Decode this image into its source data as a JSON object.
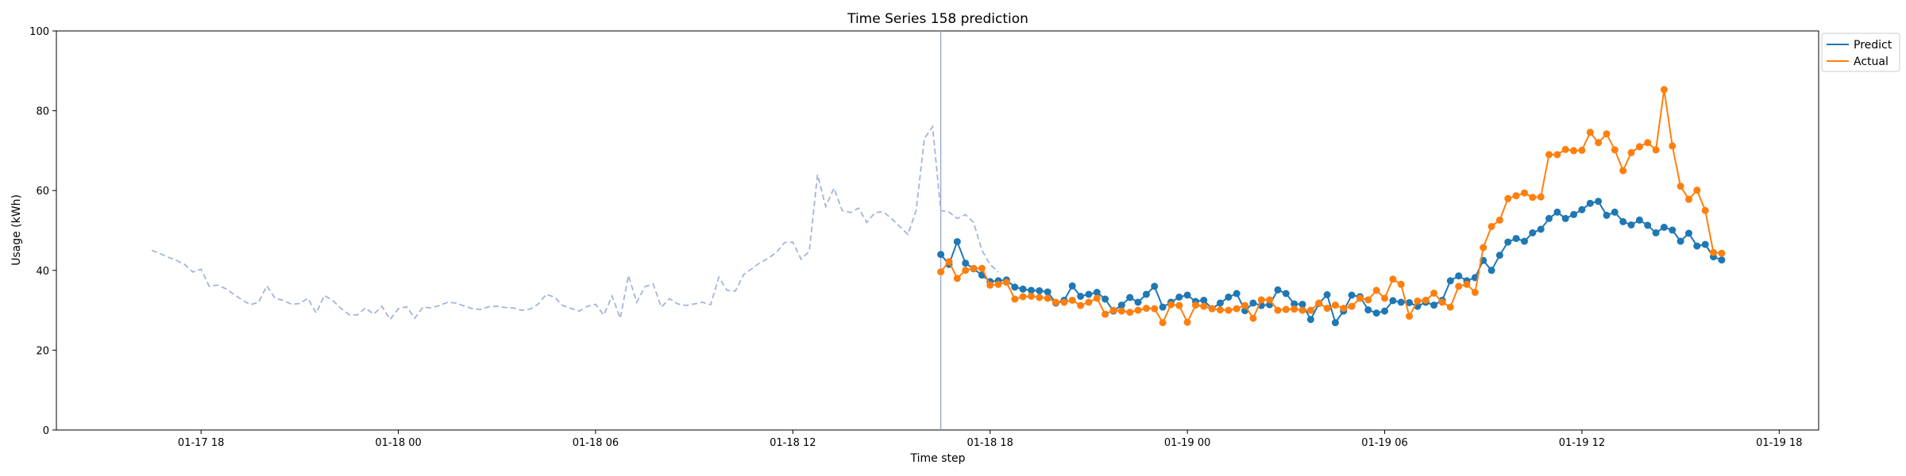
{
  "chart_data": {
    "type": "line",
    "title": "Time Series 158 prediction",
    "xlabel": "Time step",
    "ylabel": "Usage (kWh)",
    "ylim": [
      0,
      100
    ],
    "xlim": [
      "01-17 13:36",
      "01-19 19:12"
    ],
    "x_tick_labels": [
      "01-17 18",
      "01-18 00",
      "01-18 06",
      "01-18 12",
      "01-18 18",
      "01-19 00",
      "01-19 06",
      "01-19 12",
      "01-19 18"
    ],
    "y_tick_labels": [
      "0",
      "20",
      "40",
      "60",
      "80",
      "100"
    ],
    "grid": false,
    "legend_position": "top-right, outside",
    "forecast_start": "01-18 16:30",
    "history": {
      "start": "01-17 16:30",
      "interval_minutes": 15,
      "color": "#a3b5d9",
      "style": "dashed",
      "values": [
        45.0,
        44.2,
        43.3,
        42.5,
        41.5,
        39.6,
        40.3,
        36.0,
        36.3,
        35.4,
        34.0,
        32.6,
        31.4,
        32.0,
        36.1,
        33.0,
        32.5,
        31.5,
        31.7,
        33.0,
        29.3,
        33.7,
        32.5,
        30.5,
        28.9,
        28.8,
        30.6,
        29.0,
        31.0,
        27.7,
        30.4,
        30.9,
        28.0,
        30.8,
        30.6,
        31.2,
        32.0,
        31.8,
        31.1,
        30.4,
        30.2,
        30.9,
        31.0,
        30.7,
        30.6,
        30.0,
        30.3,
        31.5,
        34.0,
        33.3,
        31.2,
        30.5,
        29.8,
        31.0,
        31.5,
        28.8,
        33.6,
        28.0,
        38.7,
        32.0,
        35.9,
        36.6,
        30.8,
        32.9,
        31.6,
        31.2,
        31.6,
        32.0,
        31.4,
        38.3,
        35.0,
        34.8,
        38.9,
        40.4,
        41.9,
        43.0,
        44.5,
        47.0,
        47.1,
        42.8,
        44.8,
        64.0,
        56.0,
        60.6,
        55.0,
        54.5,
        55.6,
        52.0,
        54.5,
        54.7,
        53.0,
        51.0,
        49.0,
        55.0,
        73.0,
        76.0,
        55.0,
        54.6,
        53.0,
        54.0,
        52.0,
        45.0,
        41.5,
        39.6
      ]
    },
    "series": [
      {
        "name": "Predict",
        "color": "#1f77b4",
        "start": "01-18 16:30",
        "interval_minutes": 15,
        "values": [
          44.0,
          41.5,
          47.2,
          41.8,
          40.4,
          38.8,
          37.2,
          37.4,
          37.6,
          35.8,
          35.3,
          35.0,
          34.9,
          34.6,
          31.8,
          32.5,
          36.1,
          33.5,
          34.0,
          34.5,
          32.8,
          29.8,
          31.3,
          33.2,
          32.0,
          34.0,
          36.0,
          30.8,
          32.0,
          33.3,
          33.8,
          32.2,
          32.5,
          30.4,
          31.8,
          33.3,
          34.2,
          29.9,
          31.8,
          31.2,
          31.4,
          35.1,
          34.2,
          31.6,
          31.5,
          27.7,
          31.7,
          33.9,
          26.9,
          29.8,
          33.8,
          33.4,
          30.1,
          29.3,
          29.8,
          32.4,
          32.0,
          31.9,
          31.0,
          32.0,
          31.3,
          32.5,
          37.4,
          38.6,
          37.4,
          38.2,
          42.5,
          40.0,
          43.8,
          47.1,
          48.0,
          47.3,
          49.4,
          50.3,
          53.0,
          54.6,
          53.0,
          54.0,
          55.2,
          56.8,
          57.3,
          53.8,
          54.6,
          52.2,
          51.4,
          52.6,
          51.3,
          49.4,
          50.8,
          50.1,
          47.3,
          49.3,
          46.1,
          46.5,
          43.4,
          42.6
        ]
      },
      {
        "name": "Actual",
        "color": "#ff7f0e",
        "start": "01-18 16:30",
        "interval_minutes": 15,
        "values": [
          39.6,
          42.2,
          38.0,
          40.0,
          40.5,
          40.5,
          36.3,
          36.5,
          37.0,
          32.8,
          33.4,
          33.5,
          33.2,
          33.0,
          32.0,
          32.0,
          32.5,
          31.2,
          32.0,
          33.0,
          29.0,
          30.0,
          29.8,
          29.5,
          30.0,
          30.5,
          30.4,
          26.9,
          31.4,
          31.2,
          27.0,
          31.3,
          31.0,
          30.4,
          30.1,
          30.0,
          30.4,
          31.2,
          28.0,
          32.6,
          32.6,
          30.0,
          30.2,
          30.3,
          30.0,
          30.0,
          31.8,
          30.5,
          31.3,
          30.5,
          31.0,
          33.0,
          32.6,
          35.0,
          33.0,
          37.8,
          36.5,
          28.5,
          32.3,
          32.5,
          34.3,
          32.0,
          30.8,
          36.0,
          36.5,
          34.5,
          45.7,
          51.0,
          52.6,
          58.0,
          58.7,
          59.4,
          58.3,
          58.4,
          69.0,
          69.0,
          70.3,
          70.0,
          70.1,
          74.6,
          72.0,
          74.2,
          70.2,
          65.0,
          69.5,
          71.0,
          72.0,
          70.2,
          85.3,
          71.2,
          61.1,
          57.8,
          60.1,
          55.0,
          44.5,
          44.3
        ]
      }
    ]
  }
}
